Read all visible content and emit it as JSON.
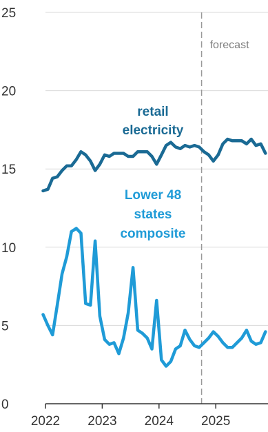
{
  "chart_data": {
    "type": "line",
    "title": "",
    "xlabel": "",
    "ylabel": "",
    "ylim": [
      0,
      25
    ],
    "xlim": [
      2022,
      2025.92
    ],
    "yticks": [
      "0",
      "5",
      "10",
      "15",
      "20",
      "25"
    ],
    "xticks": [
      "2022",
      "2023",
      "2024",
      "2025"
    ],
    "grid": "horizontal",
    "forecast": {
      "label": "forecast",
      "start": 2024.75,
      "color": "#999999"
    },
    "series": [
      {
        "name": "retail electricity",
        "label_lines": [
          "retail",
          "electricity"
        ],
        "color": "#1a6a94",
        "x": [
          2021.958,
          2022.042,
          2022.125,
          2022.208,
          2022.292,
          2022.375,
          2022.458,
          2022.542,
          2022.625,
          2022.708,
          2022.792,
          2022.875,
          2022.958,
          2023.042,
          2023.125,
          2023.208,
          2023.292,
          2023.375,
          2023.458,
          2023.542,
          2023.625,
          2023.708,
          2023.792,
          2023.875,
          2023.958,
          2024.042,
          2024.125,
          2024.208,
          2024.292,
          2024.375,
          2024.458,
          2024.542,
          2024.625,
          2024.708,
          2024.792,
          2024.875,
          2024.958,
          2025.042,
          2025.125,
          2025.208,
          2025.292,
          2025.375,
          2025.458,
          2025.542,
          2025.625,
          2025.708,
          2025.792,
          2025.875
        ],
        "y": [
          13.6,
          13.7,
          14.4,
          14.5,
          14.9,
          15.2,
          15.2,
          15.6,
          16.1,
          15.9,
          15.5,
          14.9,
          15.3,
          15.9,
          15.8,
          16.0,
          16.0,
          16.0,
          15.8,
          15.8,
          16.1,
          16.1,
          16.1,
          15.8,
          15.3,
          15.9,
          16.5,
          16.7,
          16.4,
          16.3,
          16.5,
          16.4,
          16.5,
          16.4,
          16.1,
          15.9,
          15.5,
          15.9,
          16.6,
          16.9,
          16.8,
          16.8,
          16.8,
          16.6,
          16.9,
          16.5,
          16.6,
          16.0
        ]
      },
      {
        "name": "Lower 48 states composite",
        "label_lines": [
          "Lower 48",
          "states",
          "composite"
        ],
        "color": "#1f9bd7",
        "x": [
          2021.958,
          2022.042,
          2022.125,
          2022.208,
          2022.292,
          2022.375,
          2022.458,
          2022.542,
          2022.625,
          2022.708,
          2022.792,
          2022.875,
          2022.958,
          2023.042,
          2023.125,
          2023.208,
          2023.292,
          2023.375,
          2023.458,
          2023.542,
          2023.625,
          2023.708,
          2023.792,
          2023.875,
          2023.958,
          2024.042,
          2024.125,
          2024.208,
          2024.292,
          2024.375,
          2024.458,
          2024.542,
          2024.625,
          2024.708,
          2024.792,
          2024.875,
          2024.958,
          2025.042,
          2025.125,
          2025.208,
          2025.292,
          2025.375,
          2025.458,
          2025.542,
          2025.625,
          2025.708,
          2025.792,
          2025.875
        ],
        "y": [
          5.7,
          5.0,
          4.4,
          6.3,
          8.3,
          9.4,
          11.0,
          11.2,
          10.9,
          6.4,
          6.3,
          10.4,
          5.6,
          4.1,
          3.8,
          3.9,
          3.2,
          4.2,
          5.8,
          8.7,
          4.7,
          4.5,
          4.2,
          3.5,
          6.6,
          2.8,
          2.4,
          2.7,
          3.5,
          3.7,
          4.7,
          4.1,
          3.7,
          3.6,
          3.9,
          4.2,
          4.6,
          4.3,
          3.9,
          3.6,
          3.6,
          3.9,
          4.2,
          4.7,
          4.0,
          3.8,
          3.9,
          4.6
        ]
      }
    ]
  }
}
